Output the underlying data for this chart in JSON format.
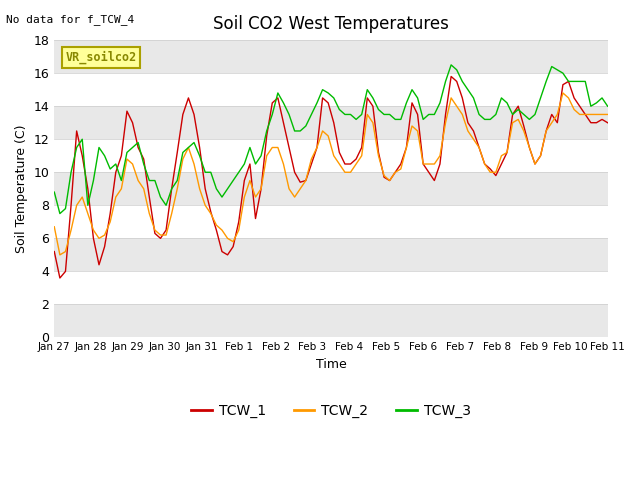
{
  "title": "Soil CO2 West Temperatures",
  "xlabel": "Time",
  "ylabel": "Soil Temperature (C)",
  "no_data_text": "No data for f_TCW_4",
  "vr_label": "VR_soilco2",
  "ylim": [
    0,
    18
  ],
  "yticks": [
    0,
    2,
    4,
    6,
    8,
    10,
    12,
    14,
    16,
    18
  ],
  "bg_color": "#ffffff",
  "band_color": "#e8e8e8",
  "legend_entries": [
    "TCW_1",
    "TCW_2",
    "TCW_3"
  ],
  "line_colors": [
    "#cc0000",
    "#ff9900",
    "#00bb00"
  ],
  "x_tick_labels": [
    "Jan 27",
    "Jan 28",
    "Jan 29",
    "Jan 30",
    "Jan 31",
    "Feb 1",
    "Feb 2",
    "Feb 3",
    "Feb 4",
    "Feb 5",
    "Feb 6",
    "Feb 7",
    "Feb 8",
    "Feb 9",
    "Feb 10",
    "Feb 11"
  ],
  "TCW_1": [
    5.2,
    3.6,
    4.0,
    8.0,
    12.5,
    11.0,
    9.0,
    6.0,
    4.4,
    5.5,
    7.5,
    10.0,
    11.0,
    13.7,
    13.0,
    11.5,
    10.8,
    8.5,
    6.3,
    6.0,
    6.5,
    9.0,
    11.2,
    13.5,
    14.5,
    13.5,
    11.5,
    9.0,
    7.6,
    6.5,
    5.2,
    5.0,
    5.5,
    7.0,
    9.5,
    10.5,
    7.2,
    9.0,
    12.2,
    14.2,
    14.5,
    13.0,
    11.5,
    10.0,
    9.4,
    9.5,
    10.5,
    11.5,
    14.5,
    14.2,
    13.0,
    11.2,
    10.5,
    10.5,
    10.8,
    11.5,
    14.5,
    14.0,
    11.2,
    9.7,
    9.5,
    10.0,
    10.5,
    11.5,
    14.2,
    13.5,
    10.5,
    10.0,
    9.5,
    10.5,
    13.5,
    15.8,
    15.5,
    14.5,
    13.0,
    12.5,
    11.5,
    10.5,
    10.2,
    9.8,
    10.5,
    11.2,
    13.5,
    14.0,
    12.8,
    11.5,
    10.5,
    11.0,
    12.5,
    13.5,
    13.0,
    15.3,
    15.5,
    14.5,
    14.0,
    13.5,
    13.0,
    13.0,
    13.2,
    13.0
  ],
  "TCW_2": [
    6.7,
    5.0,
    5.2,
    6.5,
    8.0,
    8.5,
    7.5,
    6.5,
    6.0,
    6.2,
    7.0,
    8.5,
    9.0,
    10.8,
    10.5,
    9.5,
    9.0,
    7.5,
    6.5,
    6.2,
    6.2,
    7.5,
    9.0,
    10.8,
    11.5,
    10.5,
    9.0,
    8.0,
    7.5,
    6.8,
    6.5,
    6.0,
    5.8,
    6.5,
    8.5,
    9.5,
    8.5,
    9.0,
    11.0,
    11.5,
    11.5,
    10.5,
    9.0,
    8.5,
    9.0,
    9.5,
    10.8,
    11.5,
    12.5,
    12.2,
    11.0,
    10.5,
    10.0,
    10.0,
    10.5,
    11.0,
    13.5,
    13.0,
    11.0,
    9.8,
    9.5,
    10.0,
    10.2,
    11.5,
    12.8,
    12.5,
    10.5,
    10.5,
    10.5,
    11.0,
    13.0,
    14.5,
    14.0,
    13.5,
    12.5,
    12.0,
    11.5,
    10.5,
    10.0,
    10.0,
    11.0,
    11.2,
    13.0,
    13.2,
    12.5,
    11.5,
    10.5,
    11.0,
    12.5,
    13.0,
    13.5,
    14.8,
    14.5,
    13.8,
    13.5,
    13.5,
    13.5,
    13.5,
    13.5,
    13.5
  ],
  "TCW_3": [
    8.8,
    7.5,
    7.8,
    10.0,
    11.5,
    12.0,
    8.0,
    9.5,
    11.5,
    11.0,
    10.2,
    10.5,
    9.5,
    11.2,
    11.5,
    11.8,
    10.5,
    9.5,
    9.5,
    8.5,
    8.0,
    9.0,
    9.5,
    11.2,
    11.5,
    11.8,
    11.0,
    10.0,
    10.0,
    9.0,
    8.5,
    9.0,
    9.5,
    10.0,
    10.5,
    11.5,
    10.5,
    11.0,
    12.5,
    13.5,
    14.8,
    14.2,
    13.5,
    12.5,
    12.5,
    12.8,
    13.5,
    14.2,
    15.0,
    14.8,
    14.5,
    13.8,
    13.5,
    13.5,
    13.2,
    13.5,
    15.0,
    14.5,
    13.8,
    13.5,
    13.5,
    13.2,
    13.2,
    14.2,
    15.0,
    14.5,
    13.2,
    13.5,
    13.5,
    14.2,
    15.5,
    16.5,
    16.2,
    15.5,
    15.0,
    14.5,
    13.5,
    13.2,
    13.2,
    13.5,
    14.5,
    14.2,
    13.5,
    13.8,
    13.5,
    13.2,
    13.5,
    14.5,
    15.5,
    16.4,
    16.2,
    16.0,
    15.5,
    15.5,
    15.5,
    15.5,
    14.0,
    14.2,
    14.5,
    14.0
  ]
}
